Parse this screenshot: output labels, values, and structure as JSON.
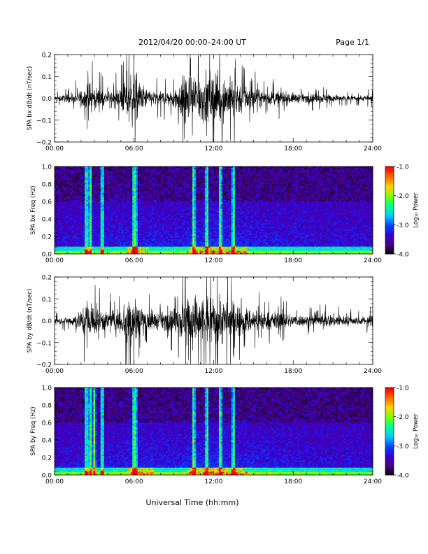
{
  "header": {
    "title": "2012/04/20  00:00–24:00 UT",
    "page": "Page 1/1"
  },
  "xlabel": "Universal Time (hh:mm)",
  "colorbar": {
    "title": "Log₁₀ Power",
    "ticks": [
      "-1.0",
      "-2.0",
      "-3.0",
      "-4.0"
    ],
    "range": [
      -4.0,
      -1.0
    ],
    "colors": [
      "#000000",
      "#4b0082",
      "#3a00d0",
      "#0046ff",
      "#00c8ff",
      "#00ff8c",
      "#7cff00",
      "#ffd200",
      "#ff6a00",
      "#ff0000"
    ]
  },
  "chart_data": [
    {
      "type": "line",
      "ylabel": "SPA bx dB/dt (nT/sec)",
      "xlim": [
        0,
        24
      ],
      "ylim": [
        -0.2,
        0.2
      ],
      "xticks": [
        "00:00",
        "06:00",
        "12:00",
        "18:00",
        "24:00"
      ],
      "yticks": [
        "0.2",
        "0.1",
        "0.0",
        "−0.1",
        "−0.2"
      ],
      "line_color": "#000000",
      "envelope": {
        "hours": [
          0,
          1,
          2,
          2.5,
          3,
          4,
          5,
          5.5,
          6,
          6.5,
          7,
          8,
          9,
          9.5,
          10,
          10.5,
          11,
          11.5,
          12,
          12.5,
          13,
          13.5,
          14,
          15,
          16,
          17,
          18,
          19,
          20,
          21,
          22,
          23,
          24
        ],
        "amplitude": [
          0.02,
          0.03,
          0.06,
          0.14,
          0.09,
          0.05,
          0.08,
          0.2,
          0.2,
          0.12,
          0.07,
          0.05,
          0.08,
          0.14,
          0.2,
          0.2,
          0.2,
          0.2,
          0.2,
          0.2,
          0.16,
          0.15,
          0.12,
          0.08,
          0.05,
          0.06,
          0.04,
          0.03,
          0.04,
          0.03,
          0.02,
          0.02,
          0.03
        ]
      }
    },
    {
      "type": "heatmap",
      "ylabel": "SPA bx Freq (Hz)",
      "xlim": [
        0,
        24
      ],
      "ylim": [
        0.0,
        1.0
      ],
      "xticks": [
        "00:00",
        "06:00",
        "12:00",
        "18:00",
        "24:00"
      ],
      "yticks": [
        "1.0",
        "0.8",
        "0.6",
        "0.4",
        "0.2",
        "0.0"
      ],
      "value_range": [
        -4.0,
        -1.0
      ],
      "bright_bands_hours": [
        2.4,
        2.7,
        3.6,
        6.0,
        6.1,
        10.5,
        11.5,
        12.5,
        13.5
      ],
      "low_freq_enhancement_hours": [
        5.5,
        7.0,
        10.0,
        14.5
      ]
    },
    {
      "type": "line",
      "ylabel": "SPA by dB/dt (nT/sec)",
      "xlim": [
        0,
        24
      ],
      "ylim": [
        -0.2,
        0.2
      ],
      "xticks": [
        "00:00",
        "06:00",
        "12:00",
        "18:00",
        "24:00"
      ],
      "yticks": [
        "0.2",
        "0.1",
        "0.0",
        "−0.1",
        "−0.2"
      ],
      "line_color": "#000000",
      "envelope": {
        "hours": [
          0,
          1,
          2,
          2.5,
          3,
          4,
          5,
          5.5,
          6,
          6.5,
          7,
          8,
          9,
          9.5,
          10,
          10.5,
          11,
          11.5,
          12,
          12.5,
          13,
          13.5,
          14,
          15,
          16,
          17,
          18,
          19,
          20,
          21,
          22,
          23,
          24
        ],
        "amplitude": [
          0.02,
          0.03,
          0.08,
          0.2,
          0.12,
          0.07,
          0.1,
          0.2,
          0.2,
          0.14,
          0.09,
          0.06,
          0.09,
          0.15,
          0.2,
          0.2,
          0.2,
          0.2,
          0.2,
          0.2,
          0.16,
          0.14,
          0.11,
          0.09,
          0.07,
          0.07,
          0.05,
          0.04,
          0.05,
          0.05,
          0.04,
          0.03,
          0.04
        ]
      }
    },
    {
      "type": "heatmap",
      "ylabel": "SPA by Freq (Hz)",
      "xlim": [
        0,
        24
      ],
      "ylim": [
        0.0,
        1.0
      ],
      "xticks": [
        "00:00",
        "06:00",
        "12:00",
        "18:00",
        "24:00"
      ],
      "yticks": [
        "1.0",
        "0.8",
        "0.6",
        "0.4",
        "0.2",
        "0.0"
      ],
      "value_range": [
        -4.0,
        -1.0
      ],
      "bright_bands_hours": [
        2.4,
        2.7,
        3.0,
        3.6,
        6.0,
        6.1,
        10.5,
        11.5,
        12.5,
        13.5
      ],
      "low_freq_enhancement_hours": [
        5.5,
        7.5,
        10.0,
        14.5
      ]
    }
  ]
}
